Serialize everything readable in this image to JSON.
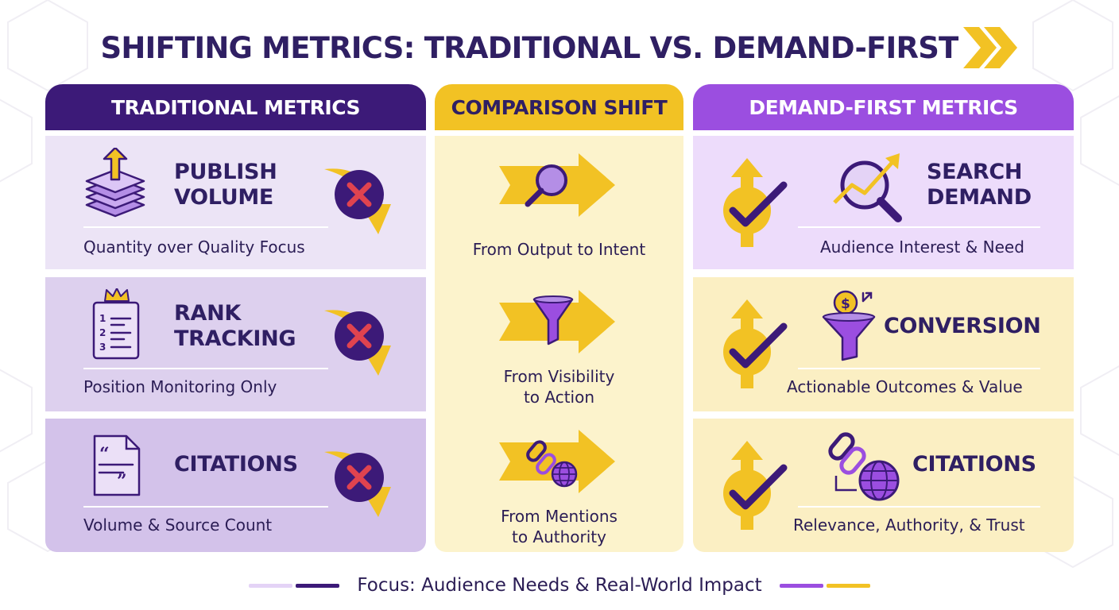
{
  "title": "SHIFTING METRICS: TRADITIONAL VS. DEMAND-FIRST",
  "colors": {
    "dark_purple": "#3c1a78",
    "purple": "#9b4ee0",
    "yellow": "#f2c224",
    "red_x": "#e0434f"
  },
  "columns": {
    "traditional": {
      "header": "TRADITIONAL METRICS",
      "cards": [
        {
          "title": "PUBLISH\nVOLUME",
          "desc": "Quantity over Quality Focus",
          "icon": "layers-up-arrow-icon",
          "status": "x-mark-icon"
        },
        {
          "title": "RANK\nTRACKING",
          "desc": "Position Monitoring Only",
          "icon": "ranked-list-crown-icon",
          "status": "x-mark-icon"
        },
        {
          "title": "CITATIONS",
          "desc": "Volume & Source Count",
          "icon": "quote-document-icon",
          "status": "x-mark-icon"
        }
      ]
    },
    "comparison": {
      "header": "COMPARISON SHIFT",
      "items": [
        {
          "text": "From Output to Intent",
          "icon": "magnifier-arrow-icon"
        },
        {
          "text": "From Visibility\nto Action",
          "icon": "funnel-arrow-icon"
        },
        {
          "text": "From Mentions\nto Authority",
          "icon": "link-globe-arrow-icon"
        }
      ]
    },
    "demand_first": {
      "header": "DEMAND-FIRST METRICS",
      "cards": [
        {
          "title": "SEARCH\nDEMAND",
          "desc": "Audience Interest & Need",
          "icon": "search-trend-icon",
          "status": "check-up-icon"
        },
        {
          "title": "CONVERSION",
          "desc": "Actionable Outcomes & Value",
          "icon": "funnel-dollar-icon",
          "status": "check-up-icon"
        },
        {
          "title": "CITATIONS",
          "desc": "Relevance, Authority, & Trust",
          "icon": "link-globe-icon",
          "status": "check-up-icon"
        }
      ]
    }
  },
  "legend": {
    "text": "Focus: Audience Needs & Real-World Impact",
    "bar_colors": [
      "#e4d3f6",
      "#3c1a78",
      "#9b4ee0",
      "#f2c224"
    ]
  }
}
